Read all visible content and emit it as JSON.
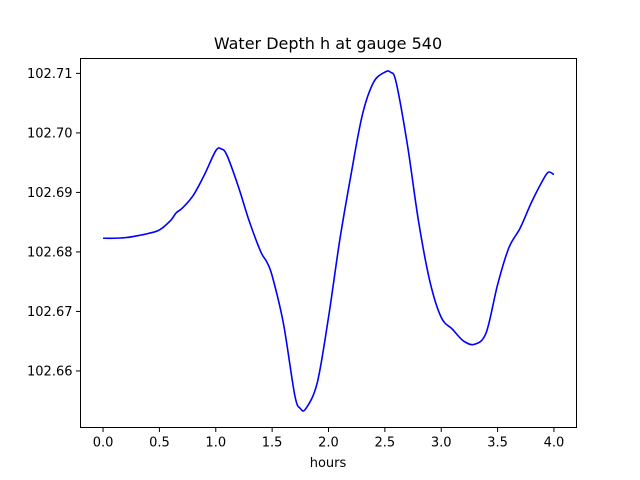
{
  "chart_data": {
    "type": "line",
    "title": "Water Depth h at gauge 540",
    "xlabel": "hours",
    "ylabel": "",
    "xlim": [
      -0.2,
      4.2
    ],
    "ylim": [
      102.6505,
      102.7125
    ],
    "xticks": [
      0.0,
      0.5,
      1.0,
      1.5,
      2.0,
      2.5,
      3.0,
      3.5,
      4.0
    ],
    "xtick_labels": [
      "0.0",
      "0.5",
      "1.0",
      "1.5",
      "2.0",
      "2.5",
      "3.0",
      "3.5",
      "4.0"
    ],
    "yticks": [
      102.66,
      102.67,
      102.68,
      102.69,
      102.7,
      102.71
    ],
    "ytick_labels": [
      "102.66",
      "102.67",
      "102.68",
      "102.69",
      "102.70",
      "102.71"
    ],
    "grid": false,
    "legend": "none",
    "series": [
      {
        "color": "#0000ff",
        "x": [
          0.0,
          0.1,
          0.2,
          0.3,
          0.4,
          0.5,
          0.6,
          0.65,
          0.7,
          0.8,
          0.9,
          1.0,
          1.05,
          1.1,
          1.2,
          1.3,
          1.4,
          1.45,
          1.5,
          1.6,
          1.7,
          1.75,
          1.8,
          1.9,
          2.0,
          2.1,
          2.2,
          2.3,
          2.4,
          2.5,
          2.55,
          2.6,
          2.7,
          2.8,
          2.9,
          3.0,
          3.1,
          3.2,
          3.3,
          3.4,
          3.5,
          3.6,
          3.7,
          3.8,
          3.9,
          3.95,
          4.0
        ],
        "y": [
          102.6823,
          102.6823,
          102.6824,
          102.6827,
          102.6831,
          102.6837,
          102.6853,
          102.6866,
          102.6873,
          102.6895,
          102.693,
          102.697,
          102.6973,
          102.6962,
          102.691,
          102.685,
          102.68,
          102.6784,
          102.676,
          102.668,
          102.656,
          102.6537,
          102.6537,
          102.658,
          102.669,
          102.682,
          102.693,
          102.703,
          102.7085,
          102.7102,
          102.7102,
          102.7085,
          102.698,
          102.685,
          102.675,
          102.669,
          102.667,
          102.665,
          102.6645,
          102.6665,
          102.6745,
          102.6807,
          102.684,
          102.6883,
          102.692,
          102.6934,
          102.693
        ]
      }
    ]
  }
}
